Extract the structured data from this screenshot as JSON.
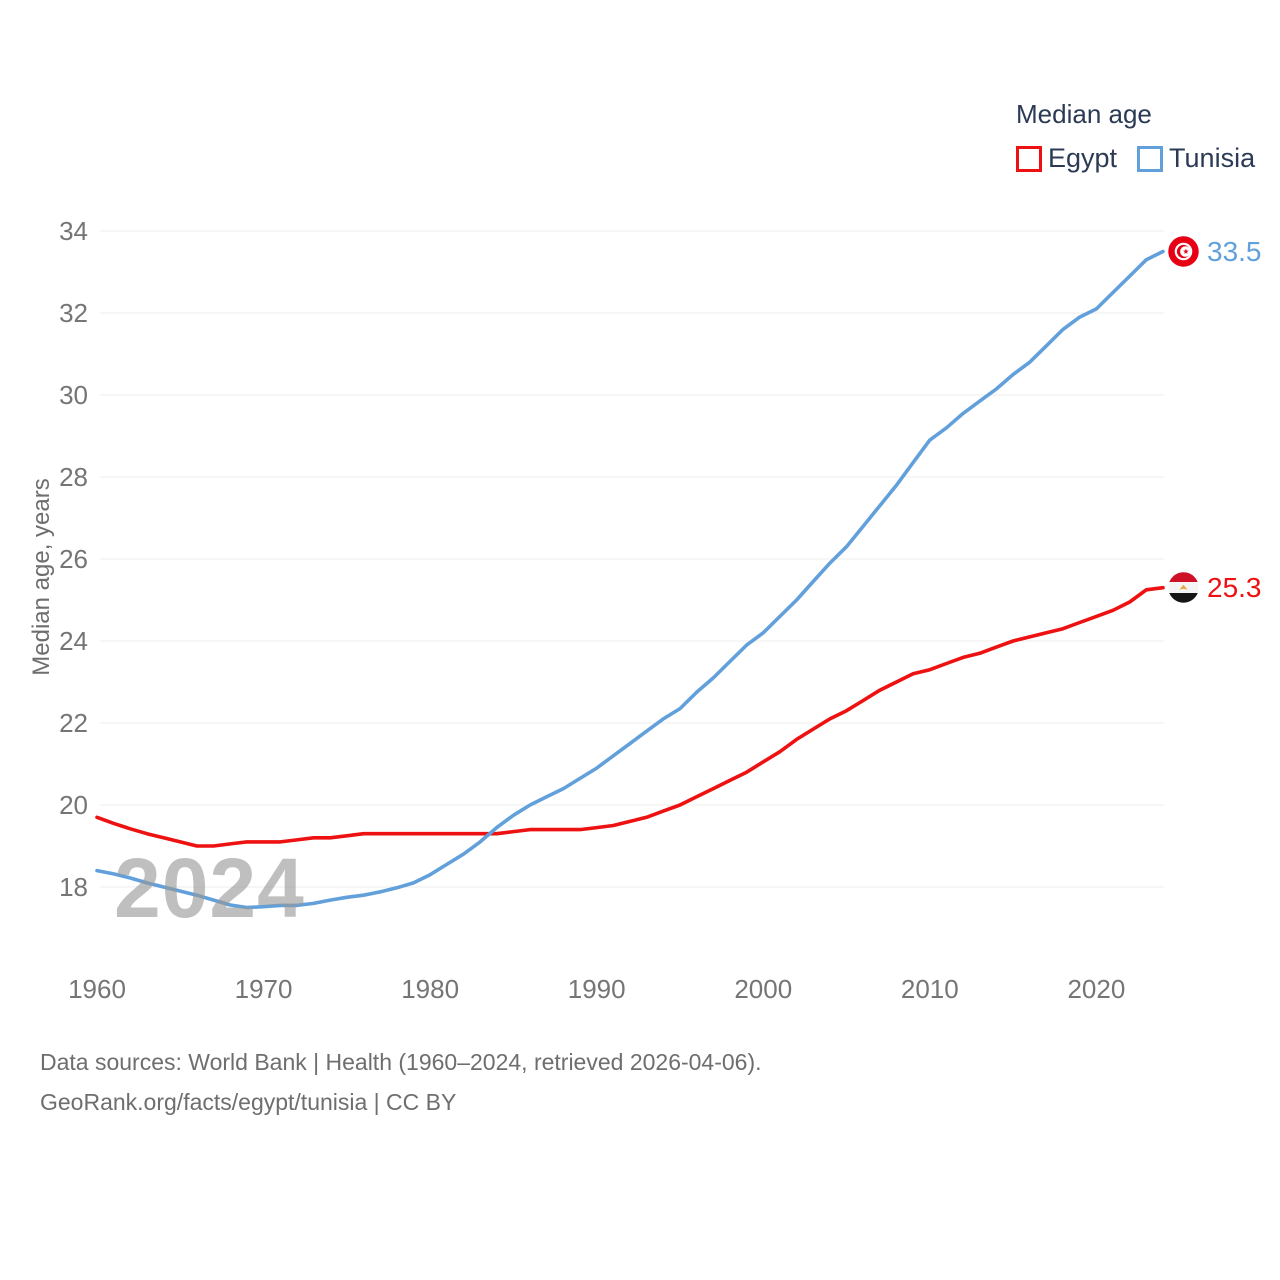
{
  "legend": {
    "title": "Median age",
    "items": [
      {
        "label": "Egypt",
        "color": "#ee1111"
      },
      {
        "label": "Tunisia",
        "color": "#62a0dc"
      }
    ]
  },
  "y_axis": {
    "title": "Median age, years",
    "ticks": [
      34,
      32,
      30,
      28,
      26,
      24,
      22,
      20,
      18
    ]
  },
  "x_axis": {
    "ticks": [
      1960,
      1970,
      1980,
      1990,
      2000,
      2010,
      2020
    ]
  },
  "watermark": "2024",
  "end_labels": [
    {
      "series": "Tunisia",
      "value": "33.5",
      "flag": "tunisia-flag"
    },
    {
      "series": "Egypt",
      "value": "25.3",
      "flag": "egypt-flag"
    }
  ],
  "footer": {
    "line1": "Data sources: World Bank | Health (1960–2024, retrieved 2026-04-06).",
    "line2": "GeoRank.org/facts/egypt/tunisia | CC BY"
  },
  "chart_data": {
    "type": "line",
    "title": "Median age",
    "ylabel": "Median age, years",
    "x_start": 1960,
    "x_end": 2024,
    "x_step": 1,
    "ylim": [
      17,
      34.5
    ],
    "grid": "horizontal",
    "legend_position": "top-right",
    "series": [
      {
        "name": "Egypt",
        "color": "#ee1111",
        "end_value": 25.3,
        "values": [
          19.7,
          19.55,
          19.42,
          19.3,
          19.2,
          19.1,
          19.0,
          19.0,
          19.05,
          19.1,
          19.1,
          19.1,
          19.15,
          19.2,
          19.2,
          19.25,
          19.3,
          19.3,
          19.3,
          19.3,
          19.3,
          19.3,
          19.3,
          19.3,
          19.3,
          19.35,
          19.4,
          19.4,
          19.4,
          19.4,
          19.45,
          19.5,
          19.6,
          19.7,
          19.85,
          20.0,
          20.2,
          20.4,
          20.6,
          20.8,
          21.05,
          21.3,
          21.6,
          21.85,
          22.1,
          22.3,
          22.55,
          22.8,
          23.0,
          23.2,
          23.3,
          23.45,
          23.6,
          23.7,
          23.85,
          24.0,
          24.1,
          24.2,
          24.3,
          24.45,
          24.6,
          24.75,
          24.95,
          25.25,
          25.3
        ]
      },
      {
        "name": "Tunisia",
        "color": "#62a0dc",
        "end_value": 33.5,
        "values": [
          18.4,
          18.32,
          18.22,
          18.1,
          18.0,
          17.9,
          17.8,
          17.68,
          17.56,
          17.5,
          17.52,
          17.55,
          17.55,
          17.6,
          17.68,
          17.75,
          17.8,
          17.88,
          17.98,
          18.1,
          18.3,
          18.55,
          18.8,
          19.1,
          19.45,
          19.75,
          20.0,
          20.2,
          20.4,
          20.65,
          20.9,
          21.2,
          21.5,
          21.8,
          22.1,
          22.35,
          22.75,
          23.1,
          23.5,
          23.9,
          24.2,
          24.6,
          25.0,
          25.45,
          25.9,
          26.3,
          26.8,
          27.3,
          27.8,
          28.35,
          28.9,
          29.2,
          29.55,
          29.85,
          30.15,
          30.5,
          30.8,
          31.2,
          31.6,
          31.9,
          32.1,
          32.5,
          32.9,
          33.3,
          33.5
        ]
      }
    ]
  }
}
